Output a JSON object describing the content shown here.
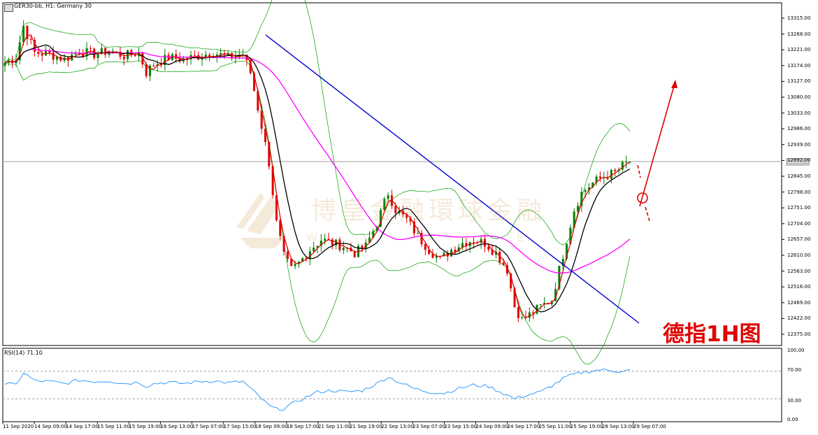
{
  "header": {
    "title": "GER30-bb, H1: Germany 30",
    "rsi_label": "RSI(14) 71.10"
  },
  "watermark": {
    "text_cn": "博皇金融環球金融",
    "text_en": "W   V   I   F   E   L"
  },
  "annotation": {
    "text": "德指1H图"
  },
  "current_price_label": "12890.0",
  "colors": {
    "bull_candle": "#008000",
    "bear_candle": "#e00000",
    "ma_fast": "#e00000",
    "ma_slow": "#000000",
    "ma_long": "#ff00ff",
    "bollinger": "#00a000",
    "trendline": "#0000cc",
    "rsi_line": "#1e90ff",
    "annotation": "#e00000"
  },
  "chart_data": {
    "type": "candlestick",
    "symbol": "GER30-bb",
    "timeframe": "H1",
    "instrument": "Germany 30",
    "y_range": [
      12375,
      13315
    ],
    "y_ticks": [
      13315,
      13268,
      13221,
      13174,
      13127,
      13080,
      13033,
      12986,
      12939,
      12892,
      12845,
      12798,
      12751,
      12704,
      12657,
      12610,
      12563,
      12516,
      12469,
      12422,
      12375
    ],
    "y_tick_labels": [
      "13315.00",
      "13268.00",
      "13221.00",
      "13174.00",
      "13127.00",
      "13080.00",
      "13033.00",
      "12986.00",
      "12939.00",
      "12892.00",
      "12845.00",
      "12798.00",
      "12751.00",
      "12704.00",
      "12657.00",
      "12610.00",
      "12563.00",
      "12516.00",
      "12469.00",
      "12422.00",
      "12375.00"
    ],
    "x_tick_labels": [
      "11 Sep 2020",
      "14 Sep 09:00",
      "14 Sep 17:00",
      "15 Sep 11:00",
      "15 Sep 19:00",
      "16 Sep 13:00",
      "17 Sep 07:00",
      "17 Sep 15:00",
      "18 Sep 09:00",
      "18 Sep 17:00",
      "21 Sep 11:00",
      "21 Sep 19:00",
      "22 Sep 13:00",
      "23 Sep 07:00",
      "23 Sep 15:00",
      "24 Sep 09:00",
      "24 Sep 17:00",
      "25 Sep 11:00",
      "25 Sep 19:00",
      "28 Sep 13:00",
      "29 Sep 07:00"
    ],
    "close_path": [
      [
        0,
        13180
      ],
      [
        3,
        13195
      ],
      [
        5,
        13290
      ],
      [
        8,
        13210
      ],
      [
        12,
        13205
      ],
      [
        16,
        13190
      ],
      [
        20,
        13215
      ],
      [
        24,
        13205
      ],
      [
        28,
        13215
      ],
      [
        32,
        13200
      ],
      [
        36,
        13210
      ],
      [
        38,
        13150
      ],
      [
        40,
        13175
      ],
      [
        44,
        13195
      ],
      [
        48,
        13190
      ],
      [
        52,
        13200
      ],
      [
        56,
        13210
      ],
      [
        60,
        13195
      ],
      [
        64,
        13205
      ],
      [
        66,
        13150
      ],
      [
        69,
        12990
      ],
      [
        71,
        12880
      ],
      [
        73,
        12700
      ],
      [
        75,
        12600
      ],
      [
        77,
        12560
      ],
      [
        79,
        12580
      ],
      [
        82,
        12620
      ],
      [
        85,
        12650
      ],
      [
        88,
        12640
      ],
      [
        91,
        12630
      ],
      [
        94,
        12610
      ],
      [
        97,
        12630
      ],
      [
        100,
        12700
      ],
      [
        103,
        12790
      ],
      [
        105,
        12740
      ],
      [
        108,
        12710
      ],
      [
        111,
        12660
      ],
      [
        114,
        12620
      ],
      [
        117,
        12590
      ],
      [
        120,
        12620
      ],
      [
        123,
        12640
      ],
      [
        126,
        12650
      ],
      [
        129,
        12640
      ],
      [
        132,
        12610
      ],
      [
        135,
        12560
      ],
      [
        137,
        12450
      ],
      [
        139,
        12410
      ],
      [
        141,
        12425
      ],
      [
        144,
        12450
      ],
      [
        147,
        12470
      ],
      [
        149,
        12560
      ],
      [
        151,
        12650
      ],
      [
        153,
        12740
      ],
      [
        155,
        12790
      ],
      [
        158,
        12820
      ],
      [
        161,
        12840
      ],
      [
        164,
        12850
      ],
      [
        166,
        12870
      ],
      [
        168,
        12885
      ]
    ],
    "moving_averages": [
      {
        "label": "fast",
        "color": "#e00000"
      },
      {
        "label": "slow",
        "color": "#000000"
      },
      {
        "label": "long",
        "color": "#ff00ff"
      }
    ],
    "bollinger_bands": true,
    "trendline": {
      "from": [
        13258,
        "18 Sep 09:00"
      ],
      "to": [
        12395,
        "29 Sep 07:00"
      ]
    },
    "rsi": {
      "period": 14,
      "current": 71.1,
      "y_range": [
        0,
        100
      ],
      "y_ticks": [
        100,
        70,
        30,
        0
      ],
      "y_tick_labels": [
        "100.00",
        "70.00",
        "30.00",
        "0.00"
      ],
      "levels": [
        70,
        30
      ],
      "path": [
        [
          0,
          52
        ],
        [
          3,
          50
        ],
        [
          5,
          68
        ],
        [
          8,
          56
        ],
        [
          12,
          55
        ],
        [
          16,
          52
        ],
        [
          20,
          57
        ],
        [
          24,
          55
        ],
        [
          28,
          56
        ],
        [
          32,
          52
        ],
        [
          36,
          54
        ],
        [
          38,
          48
        ],
        [
          40,
          52
        ],
        [
          44,
          54
        ],
        [
          48,
          52
        ],
        [
          52,
          55
        ],
        [
          56,
          56
        ],
        [
          60,
          53
        ],
        [
          64,
          55
        ],
        [
          66,
          45
        ],
        [
          69,
          30
        ],
        [
          71,
          20
        ],
        [
          73,
          15
        ],
        [
          75,
          16
        ],
        [
          77,
          22
        ],
        [
          80,
          30
        ],
        [
          84,
          40
        ],
        [
          88,
          42
        ],
        [
          92,
          40
        ],
        [
          96,
          42
        ],
        [
          100,
          52
        ],
        [
          103,
          62
        ],
        [
          106,
          54
        ],
        [
          110,
          45
        ],
        [
          114,
          40
        ],
        [
          118,
          38
        ],
        [
          122,
          45
        ],
        [
          126,
          50
        ],
        [
          130,
          48
        ],
        [
          134,
          38
        ],
        [
          137,
          30
        ],
        [
          140,
          35
        ],
        [
          144,
          40
        ],
        [
          148,
          52
        ],
        [
          151,
          62
        ],
        [
          155,
          68
        ],
        [
          160,
          72
        ],
        [
          165,
          70
        ],
        [
          168,
          71.1
        ]
      ]
    }
  }
}
